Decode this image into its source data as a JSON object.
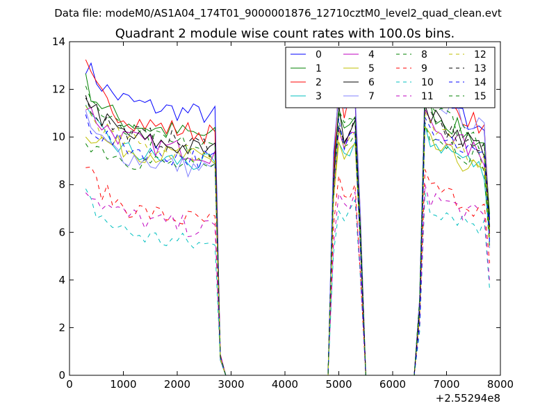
{
  "page": {
    "suptitle": "Data file: modeM0/AS1A04_174T01_9000001876_12710cztM0_level2_quad_clean.evt"
  },
  "chart_data": {
    "type": "line",
    "title": "Quadrant 2 module wise count rates with 100.0s bins.",
    "xlabel": "",
    "ylabel": "",
    "x_offset_label": "+2.55294e8",
    "xlim": [
      0,
      8000
    ],
    "ylim": [
      0,
      14
    ],
    "xticks": [
      0,
      1000,
      2000,
      3000,
      4000,
      5000,
      6000,
      7000,
      8000
    ],
    "yticks": [
      0,
      2,
      4,
      6,
      8,
      10,
      12,
      14
    ],
    "xtick_labels": [
      "0",
      "1000",
      "2000",
      "3000",
      "4000",
      "5000",
      "6000",
      "7000",
      "8000"
    ],
    "ytick_labels": [
      "0",
      "2",
      "4",
      "6",
      "8",
      "10",
      "12",
      "14"
    ],
    "grid": false,
    "legend_position": "top-right",
    "legend_columns": 4,
    "segments": [
      {
        "x_start": 300,
        "x_end": 2700,
        "step": 100
      },
      {
        "x_start": 4800,
        "x_end": 5500,
        "step": 100
      },
      {
        "x_start": 6400,
        "x_end": 7800,
        "step": 100
      }
    ],
    "series": [
      {
        "name": "0",
        "color": "#0000ff",
        "dash": "solid",
        "level": 11.5,
        "start": 13.1,
        "peak": 11.9
      },
      {
        "name": "1",
        "color": "#008000",
        "dash": "solid",
        "level": 10.6,
        "start": 12.3,
        "peak": 11.2
      },
      {
        "name": "2",
        "color": "#ff0000",
        "dash": "solid",
        "level": 10.7,
        "start": 12.9,
        "peak": 12.0
      },
      {
        "name": "3",
        "color": "#00bfbf",
        "dash": "solid",
        "level": 9.4,
        "start": 11.0,
        "peak": 10.0
      },
      {
        "name": "4",
        "color": "#bf00bf",
        "dash": "solid",
        "level": 9.9,
        "start": 11.4,
        "peak": 10.6
      },
      {
        "name": "5",
        "color": "#bfbf00",
        "dash": "solid",
        "level": 9.6,
        "start": 10.3,
        "peak": 9.8
      },
      {
        "name": "6",
        "color": "#000000",
        "dash": "solid",
        "level": 10.0,
        "start": 11.9,
        "peak": 11.0
      },
      {
        "name": "7",
        "color": "#8080ff",
        "dash": "solid",
        "level": 9.2,
        "start": 10.7,
        "peak": 11.9
      },
      {
        "name": "8",
        "color": "#008000",
        "dash": "dashed",
        "level": 9.2,
        "start": 10.0,
        "peak": 10.3
      },
      {
        "name": "9",
        "color": "#ff0000",
        "dash": "dashed",
        "level": 7.0,
        "start": 8.8,
        "peak": 8.0
      },
      {
        "name": "10",
        "color": "#00bfbf",
        "dash": "dashed",
        "level": 6.0,
        "start": 7.5,
        "peak": 7.2
      },
      {
        "name": "11",
        "color": "#bf00bf",
        "dash": "dashed",
        "level": 6.7,
        "start": 8.0,
        "peak": 7.6
      },
      {
        "name": "12",
        "color": "#bfbf00",
        "dash": "dashed",
        "level": 9.8,
        "start": 11.2,
        "peak": 10.4
      },
      {
        "name": "13",
        "color": "#000000",
        "dash": "dashed",
        "level": 10.2,
        "start": 11.6,
        "peak": 10.8
      },
      {
        "name": "14",
        "color": "#0000ff",
        "dash": "dashed",
        "level": 9.6,
        "start": 10.8,
        "peak": 10.5
      },
      {
        "name": "15",
        "color": "#008000",
        "dash": "dashed",
        "level": 10.1,
        "start": 12.1,
        "peak": 11.3
      }
    ]
  }
}
